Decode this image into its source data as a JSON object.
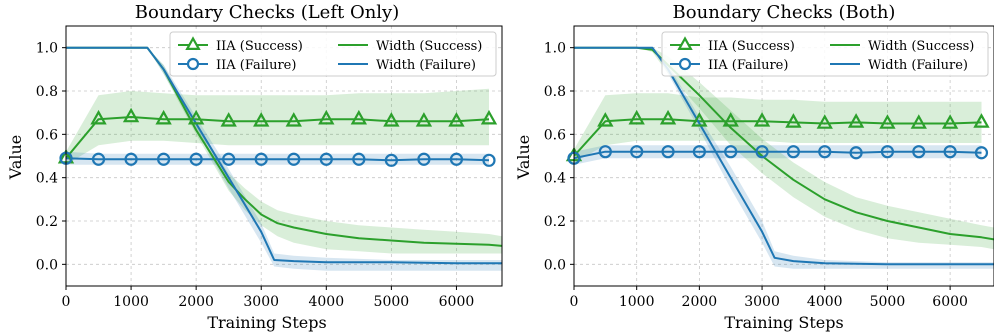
{
  "chart_data": [
    {
      "type": "line",
      "title": "Boundary Checks (Left Only)",
      "xlabel": "Training Steps",
      "ylabel": "Value",
      "xlim": [
        0,
        6700
      ],
      "ylim": [
        -0.1,
        1.1
      ],
      "xticks": [
        0,
        1000,
        2000,
        3000,
        4000,
        5000,
        6000
      ],
      "yticks": [
        0.0,
        0.2,
        0.4,
        0.6,
        0.8,
        1.0
      ],
      "xtick_labels": [
        "0",
        "1000",
        "2000",
        "3000",
        "4000",
        "5000",
        "6000"
      ],
      "ytick_labels": [
        "0.0",
        "0.2",
        "0.4",
        "0.6",
        "0.8",
        "1.0"
      ],
      "grid": true,
      "legend_position": "top-right",
      "series": [
        {
          "name": "IIA (Success)",
          "color": "#2ca02c",
          "marker": "triangle",
          "x": [
            0,
            500,
            1000,
            1500,
            2000,
            2500,
            3000,
            3500,
            4000,
            4500,
            5000,
            5500,
            6000,
            6500
          ],
          "y": [
            0.49,
            0.67,
            0.68,
            0.67,
            0.67,
            0.66,
            0.66,
            0.66,
            0.67,
            0.67,
            0.66,
            0.66,
            0.66,
            0.67
          ],
          "band_low": [
            0.46,
            0.55,
            0.57,
            0.57,
            0.56,
            0.55,
            0.55,
            0.55,
            0.55,
            0.55,
            0.55,
            0.55,
            0.55,
            0.55
          ],
          "band_high": [
            0.52,
            0.78,
            0.8,
            0.79,
            0.78,
            0.78,
            0.78,
            0.78,
            0.78,
            0.79,
            0.79,
            0.79,
            0.8,
            0.81
          ]
        },
        {
          "name": "IIA (Failure)",
          "color": "#1f77b4",
          "marker": "circle",
          "x": [
            0,
            500,
            1000,
            1500,
            2000,
            2500,
            3000,
            3500,
            4000,
            4500,
            5000,
            5500,
            6000,
            6500
          ],
          "y": [
            0.49,
            0.485,
            0.485,
            0.485,
            0.485,
            0.485,
            0.485,
            0.485,
            0.485,
            0.485,
            0.48,
            0.485,
            0.485,
            0.48
          ],
          "band_low": [
            0.46,
            0.46,
            0.46,
            0.46,
            0.46,
            0.46,
            0.46,
            0.46,
            0.46,
            0.46,
            0.46,
            0.46,
            0.46,
            0.46
          ],
          "band_high": [
            0.52,
            0.51,
            0.51,
            0.51,
            0.51,
            0.51,
            0.51,
            0.51,
            0.51,
            0.51,
            0.51,
            0.51,
            0.51,
            0.51
          ]
        },
        {
          "name": "Width (Success)",
          "color": "#2ca02c",
          "marker": "none",
          "x": [
            0,
            1250,
            1500,
            2000,
            2500,
            2750,
            3000,
            3250,
            3500,
            4000,
            4500,
            5000,
            5500,
            6000,
            6500,
            6700
          ],
          "y": [
            1.0,
            1.0,
            0.9,
            0.62,
            0.38,
            0.3,
            0.23,
            0.19,
            0.17,
            0.14,
            0.12,
            0.11,
            0.1,
            0.095,
            0.09,
            0.085
          ],
          "band_low": [
            1.0,
            1.0,
            0.88,
            0.6,
            0.34,
            0.25,
            0.18,
            0.13,
            0.1,
            0.07,
            0.06,
            0.05,
            0.05,
            0.05,
            0.05,
            0.05
          ],
          "band_high": [
            1.0,
            1.0,
            0.92,
            0.64,
            0.42,
            0.35,
            0.29,
            0.25,
            0.23,
            0.2,
            0.18,
            0.17,
            0.16,
            0.15,
            0.14,
            0.13
          ]
        },
        {
          "name": "Width (Failure)",
          "color": "#1f77b4",
          "marker": "none",
          "x": [
            0,
            1250,
            1500,
            2000,
            2500,
            3000,
            3200,
            3500,
            4000,
            5000,
            6000,
            6700
          ],
          "y": [
            1.0,
            1.0,
            0.9,
            0.65,
            0.4,
            0.15,
            0.02,
            0.015,
            0.01,
            0.01,
            0.005,
            0.005
          ],
          "band_low": [
            1.0,
            1.0,
            0.88,
            0.62,
            0.35,
            0.1,
            -0.01,
            -0.02,
            -0.03,
            -0.03,
            -0.03,
            -0.03
          ],
          "band_high": [
            1.0,
            1.0,
            0.92,
            0.68,
            0.44,
            0.19,
            0.05,
            0.04,
            0.03,
            0.02,
            0.02,
            0.02
          ]
        }
      ]
    },
    {
      "type": "line",
      "title": "Boundary Checks (Both)",
      "xlabel": "Training Steps",
      "ylabel": "Value",
      "xlim": [
        0,
        6700
      ],
      "ylim": [
        -0.1,
        1.1
      ],
      "xticks": [
        0,
        1000,
        2000,
        3000,
        4000,
        5000,
        6000
      ],
      "yticks": [
        0.0,
        0.2,
        0.4,
        0.6,
        0.8,
        1.0
      ],
      "xtick_labels": [
        "0",
        "1000",
        "2000",
        "3000",
        "4000",
        "5000",
        "6000"
      ],
      "ytick_labels": [
        "0.0",
        "0.2",
        "0.4",
        "0.6",
        "0.8",
        "1.0"
      ],
      "grid": true,
      "legend_position": "top-right",
      "series": [
        {
          "name": "IIA (Success)",
          "color": "#2ca02c",
          "marker": "triangle",
          "x": [
            0,
            500,
            1000,
            1500,
            2000,
            2500,
            3000,
            3500,
            4000,
            4500,
            5000,
            5500,
            6000,
            6500
          ],
          "y": [
            0.5,
            0.66,
            0.67,
            0.67,
            0.66,
            0.66,
            0.66,
            0.655,
            0.65,
            0.655,
            0.65,
            0.65,
            0.65,
            0.655
          ],
          "band_low": [
            0.47,
            0.55,
            0.57,
            0.57,
            0.57,
            0.57,
            0.57,
            0.56,
            0.56,
            0.56,
            0.56,
            0.56,
            0.56,
            0.56
          ],
          "band_high": [
            0.53,
            0.78,
            0.79,
            0.79,
            0.77,
            0.77,
            0.76,
            0.76,
            0.75,
            0.75,
            0.75,
            0.75,
            0.75,
            0.75
          ]
        },
        {
          "name": "IIA (Failure)",
          "color": "#1f77b4",
          "marker": "circle",
          "x": [
            0,
            500,
            1000,
            1500,
            2000,
            2500,
            3000,
            3500,
            4000,
            4500,
            5000,
            5500,
            6000,
            6500
          ],
          "y": [
            0.49,
            0.52,
            0.52,
            0.52,
            0.52,
            0.52,
            0.52,
            0.52,
            0.52,
            0.515,
            0.52,
            0.52,
            0.52,
            0.515
          ],
          "band_low": [
            0.46,
            0.49,
            0.49,
            0.49,
            0.49,
            0.49,
            0.49,
            0.49,
            0.49,
            0.49,
            0.49,
            0.49,
            0.49,
            0.49
          ],
          "band_high": [
            0.52,
            0.55,
            0.55,
            0.55,
            0.55,
            0.55,
            0.55,
            0.55,
            0.55,
            0.55,
            0.55,
            0.55,
            0.55,
            0.55
          ]
        },
        {
          "name": "Width (Success)",
          "color": "#2ca02c",
          "marker": "none",
          "x": [
            0,
            1000,
            1250,
            1500,
            2000,
            2500,
            3000,
            3500,
            4000,
            4500,
            5000,
            5500,
            6000,
            6500,
            6700
          ],
          "y": [
            1.0,
            1.0,
            0.99,
            0.92,
            0.78,
            0.63,
            0.5,
            0.39,
            0.3,
            0.24,
            0.2,
            0.17,
            0.14,
            0.125,
            0.115
          ],
          "band_low": [
            1.0,
            1.0,
            0.98,
            0.88,
            0.72,
            0.55,
            0.42,
            0.31,
            0.22,
            0.16,
            0.12,
            0.1,
            0.09,
            0.08,
            0.07
          ],
          "band_high": [
            1.0,
            1.0,
            1.0,
            0.96,
            0.84,
            0.71,
            0.58,
            0.47,
            0.38,
            0.31,
            0.27,
            0.24,
            0.21,
            0.18,
            0.17
          ]
        },
        {
          "name": "Width (Failure)",
          "color": "#1f77b4",
          "marker": "none",
          "x": [
            0,
            1250,
            1500,
            2000,
            2500,
            3000,
            3200,
            3500,
            4000,
            5000,
            6000,
            6700
          ],
          "y": [
            1.0,
            1.0,
            0.9,
            0.65,
            0.4,
            0.15,
            0.03,
            0.015,
            0.005,
            0.0,
            0.0,
            0.0
          ],
          "band_low": [
            1.0,
            1.0,
            0.88,
            0.62,
            0.35,
            0.1,
            -0.01,
            -0.02,
            -0.02,
            -0.02,
            -0.02,
            -0.02
          ],
          "band_high": [
            1.0,
            1.0,
            0.92,
            0.68,
            0.45,
            0.2,
            0.06,
            0.04,
            0.02,
            0.01,
            0.01,
            0.01
          ]
        }
      ]
    }
  ]
}
